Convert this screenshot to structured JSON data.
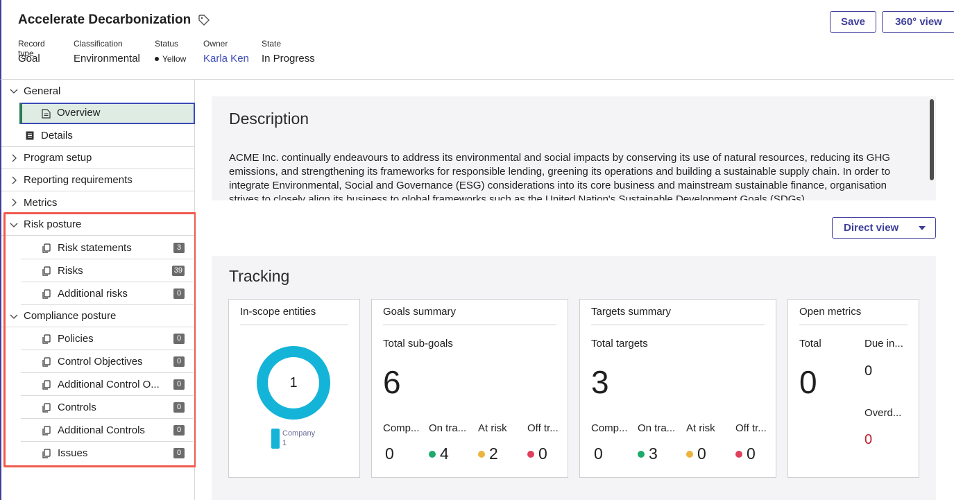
{
  "header": {
    "title": "Accelerate Decarbonization",
    "meta": [
      {
        "label": "Record type",
        "value": "Goal"
      },
      {
        "label": "Classification",
        "value": "Environmental"
      },
      {
        "label": "Status",
        "value": "Yellow"
      },
      {
        "label": "Owner",
        "value": "Karla Ken"
      },
      {
        "label": "State",
        "value": "In Progress"
      }
    ],
    "save_label": "Save",
    "view360_label": "360° view"
  },
  "sidebar": {
    "general": "General",
    "overview": "Overview",
    "details": "Details",
    "program_setup": "Program setup",
    "reporting_requirements": "Reporting requirements",
    "metrics": "Metrics",
    "risk_posture": "Risk posture",
    "risk_items": [
      {
        "label": "Risk statements",
        "count": "3"
      },
      {
        "label": "Risks",
        "count": "39"
      },
      {
        "label": "Additional risks",
        "count": "0"
      }
    ],
    "compliance_posture": "Compliance posture",
    "compliance_items": [
      {
        "label": "Policies",
        "count": "0"
      },
      {
        "label": "Control Objectives",
        "count": "0"
      },
      {
        "label": "Additional Control O...",
        "count": "0"
      },
      {
        "label": "Controls",
        "count": "0"
      },
      {
        "label": "Additional Controls",
        "count": "0"
      },
      {
        "label": "Issues",
        "count": "0"
      }
    ]
  },
  "description": {
    "title": "Description",
    "text": "ACME Inc. continually endeavours to address its environmental and social impacts by conserving its use of natural resources, reducing its GHG emissions, and strengthening its frameworks for responsible lending, greening its operations and building a sustainable supply chain. In order to integrate Environmental, Social and Governance (ESG) considerations into its core business and mainstream sustainable finance, organisation strives to closely align its business to global frameworks such as the United Nation's Sustainable Development Goals (SDGs)."
  },
  "direct_view_label": "Direct view",
  "tracking": {
    "title": "Tracking",
    "in_scope": {
      "title": "In-scope entities",
      "center": "1",
      "legend_name": "Company",
      "legend_count": "1"
    },
    "goals": {
      "title": "Goals summary",
      "subheading": "Total sub-goals",
      "total": "6",
      "stats": [
        {
          "label": "Comp...",
          "value": "0"
        },
        {
          "label": "On tra...",
          "value": "4"
        },
        {
          "label": "At risk",
          "value": "2"
        },
        {
          "label": "Off tr...",
          "value": "0"
        }
      ]
    },
    "targets": {
      "title": "Targets summary",
      "subheading": "Total targets",
      "total": "3",
      "stats": [
        {
          "label": "Comp...",
          "value": "0"
        },
        {
          "label": "On tra...",
          "value": "3"
        },
        {
          "label": "At risk",
          "value": "0"
        },
        {
          "label": "Off tr...",
          "value": "0"
        }
      ]
    },
    "open_metrics": {
      "title": "Open metrics",
      "total_label": "Total",
      "total": "0",
      "due_label": "Due in...",
      "due": "0",
      "overdue_label": "Overd...",
      "overdue": "0"
    }
  },
  "colors": {
    "accent": "#3e3e9a",
    "highlight": "#ef5a4d",
    "donut": "#14b4d8",
    "on_track": "#1daa6c",
    "at_risk": "#ecb43c",
    "off_track": "#e0405c"
  }
}
